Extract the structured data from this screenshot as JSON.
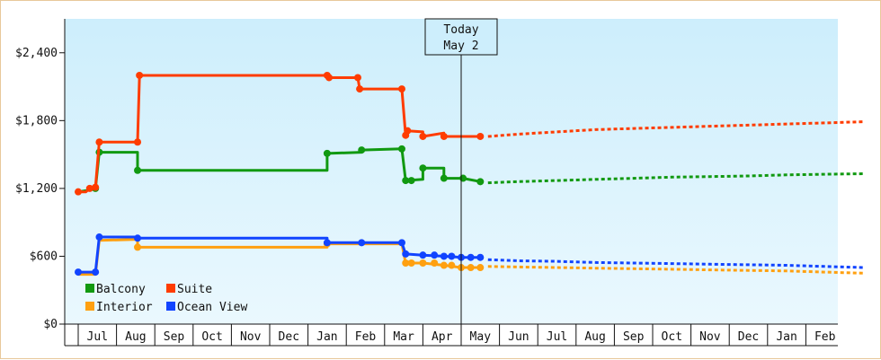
{
  "chart_data": {
    "type": "line",
    "title": "",
    "xlabel": "",
    "ylabel": "",
    "ylim": [
      0,
      2700
    ],
    "yticks": [
      0,
      600,
      1200,
      1800,
      2400
    ],
    "ytick_labels": [
      "$0",
      "$600",
      "$1,200",
      "$1,800",
      "$2,400"
    ],
    "x_months": [
      "Jul",
      "Aug",
      "Sep",
      "Oct",
      "Nov",
      "Dec",
      "Jan",
      "Feb",
      "Mar",
      "Apr",
      "May",
      "Jun",
      "Jul",
      "Aug",
      "Sep",
      "Oct",
      "Nov",
      "Dec",
      "Jan",
      "Feb"
    ],
    "today": {
      "line1": "Today",
      "line2": "May 2",
      "month_pos": 10.0
    },
    "grid": false,
    "legend_position": "bottom-left",
    "series": [
      {
        "name": "Balcony",
        "color": "#119911",
        "history": [
          [
            -0.5,
            1170
          ],
          [
            -0.3,
            1180
          ],
          [
            -0.05,
            1200
          ],
          [
            0.05,
            1520
          ],
          [
            1.05,
            1520
          ],
          [
            1.05,
            1360
          ],
          [
            6.0,
            1360
          ],
          [
            6.0,
            1510
          ],
          [
            6.9,
            1520
          ],
          [
            6.9,
            1540
          ],
          [
            7.95,
            1550
          ],
          [
            8.05,
            1270
          ],
          [
            8.5,
            1280
          ],
          [
            8.5,
            1380
          ],
          [
            9.05,
            1380
          ],
          [
            9.05,
            1290
          ],
          [
            9.55,
            1290
          ],
          [
            10.0,
            1260
          ]
        ],
        "forecast": [
          [
            10.2,
            1250
          ],
          [
            11.0,
            1260
          ],
          [
            12.0,
            1270
          ],
          [
            13.0,
            1280
          ],
          [
            14.0,
            1290
          ],
          [
            15.0,
            1300
          ],
          [
            16.0,
            1305
          ],
          [
            17.0,
            1310
          ],
          [
            18.0,
            1320
          ],
          [
            19.0,
            1325
          ],
          [
            20.0,
            1330
          ]
        ],
        "markers_x": [
          -0.05,
          0.05,
          1.05,
          6.0,
          6.9,
          7.95,
          8.05,
          8.2,
          8.5,
          9.05,
          9.55,
          10.0
        ]
      },
      {
        "name": "Suite",
        "color": "#ff3c00",
        "history": [
          [
            -0.5,
            1170
          ],
          [
            -0.3,
            1170
          ],
          [
            -0.2,
            1200
          ],
          [
            -0.05,
            1210
          ],
          [
            0.05,
            1610
          ],
          [
            1.05,
            1610
          ],
          [
            1.1,
            2200
          ],
          [
            6.0,
            2200
          ],
          [
            6.05,
            2180
          ],
          [
            6.8,
            2180
          ],
          [
            6.85,
            2080
          ],
          [
            7.95,
            2080
          ],
          [
            8.05,
            1670
          ],
          [
            8.1,
            1710
          ],
          [
            8.5,
            1700
          ],
          [
            8.5,
            1660
          ],
          [
            9.05,
            1690
          ],
          [
            9.05,
            1660
          ],
          [
            10.0,
            1660
          ]
        ],
        "forecast": [
          [
            10.2,
            1660
          ],
          [
            11.0,
            1680
          ],
          [
            12.0,
            1700
          ],
          [
            13.0,
            1720
          ],
          [
            14.0,
            1730
          ],
          [
            15.0,
            1740
          ],
          [
            16.0,
            1750
          ],
          [
            17.0,
            1760
          ],
          [
            18.0,
            1770
          ],
          [
            19.0,
            1780
          ],
          [
            20.0,
            1790
          ]
        ],
        "markers_x": [
          -0.5,
          -0.2,
          -0.05,
          0.05,
          1.05,
          1.1,
          6.0,
          6.05,
          6.8,
          6.85,
          7.95,
          8.05,
          8.1,
          8.5,
          9.05,
          10.0
        ]
      },
      {
        "name": "Interior",
        "color": "#ffa010",
        "history": [
          [
            -0.5,
            440
          ],
          [
            -0.05,
            440
          ],
          [
            0.05,
            740
          ],
          [
            1.05,
            750
          ],
          [
            1.05,
            680
          ],
          [
            6.0,
            680
          ],
          [
            6.0,
            710
          ],
          [
            7.95,
            710
          ],
          [
            8.05,
            540
          ],
          [
            8.5,
            540
          ],
          [
            9.05,
            520
          ],
          [
            9.5,
            500
          ],
          [
            10.0,
            500
          ]
        ],
        "forecast": [
          [
            10.2,
            510
          ],
          [
            11.0,
            505
          ],
          [
            12.0,
            500
          ],
          [
            13.0,
            495
          ],
          [
            14.0,
            490
          ],
          [
            15.0,
            485
          ],
          [
            16.0,
            480
          ],
          [
            17.0,
            475
          ],
          [
            18.0,
            470
          ],
          [
            19.0,
            460
          ],
          [
            20.0,
            450
          ]
        ],
        "markers_x": [
          1.05,
          6.0,
          8.05,
          8.2,
          8.5,
          8.8,
          9.05,
          9.25,
          9.5,
          9.75,
          10.0
        ]
      },
      {
        "name": "Ocean View",
        "color": "#1144ff",
        "history": [
          [
            -0.5,
            460
          ],
          [
            -0.05,
            460
          ],
          [
            0.05,
            770
          ],
          [
            1.05,
            770
          ],
          [
            1.05,
            760
          ],
          [
            6.0,
            760
          ],
          [
            6.0,
            720
          ],
          [
            7.95,
            720
          ],
          [
            8.05,
            620
          ],
          [
            8.5,
            610
          ],
          [
            9.05,
            600
          ],
          [
            9.5,
            590
          ],
          [
            10.0,
            590
          ]
        ],
        "forecast": [
          [
            10.2,
            570
          ],
          [
            11.0,
            560
          ],
          [
            12.0,
            555
          ],
          [
            13.0,
            545
          ],
          [
            14.0,
            540
          ],
          [
            15.0,
            535
          ],
          [
            16.0,
            530
          ],
          [
            17.0,
            525
          ],
          [
            18.0,
            520
          ],
          [
            19.0,
            510
          ],
          [
            20.0,
            500
          ]
        ],
        "markers_x": [
          -0.5,
          -0.05,
          0.05,
          1.05,
          6.0,
          6.9,
          7.95,
          8.05,
          8.5,
          8.8,
          9.05,
          9.25,
          9.5,
          9.75,
          10.0
        ]
      }
    ]
  }
}
